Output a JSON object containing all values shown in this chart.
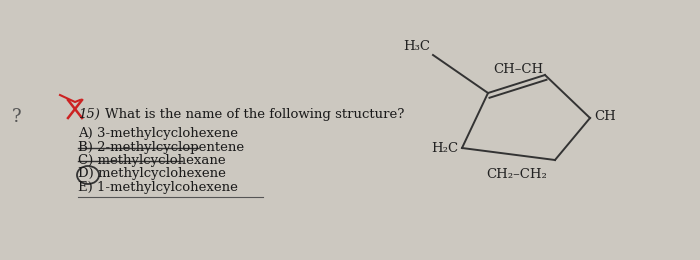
{
  "bg_color": "#ccc8c0",
  "question_number": "15",
  "question_text": "What is the name of the following structure?",
  "options": [
    {
      "label": "A)",
      "text": "3-methylcyclohexene",
      "strikethrough": false,
      "circled": false
    },
    {
      "label": "B)",
      "text": "2-methylcyclopentene",
      "strikethrough": true,
      "circled": false
    },
    {
      "label": "C)",
      "text": "methylcyclohexane",
      "strikethrough": true,
      "circled": false
    },
    {
      "label": "D)",
      "text": "methylcyclohexene",
      "strikethrough": false,
      "circled": true
    },
    {
      "label": "E)",
      "text": "1-methylcylcohexene",
      "strikethrough": false,
      "circled": false
    }
  ],
  "font_color": "#1a1a1a",
  "font_size_question": 9.5,
  "font_size_options": 9.5
}
